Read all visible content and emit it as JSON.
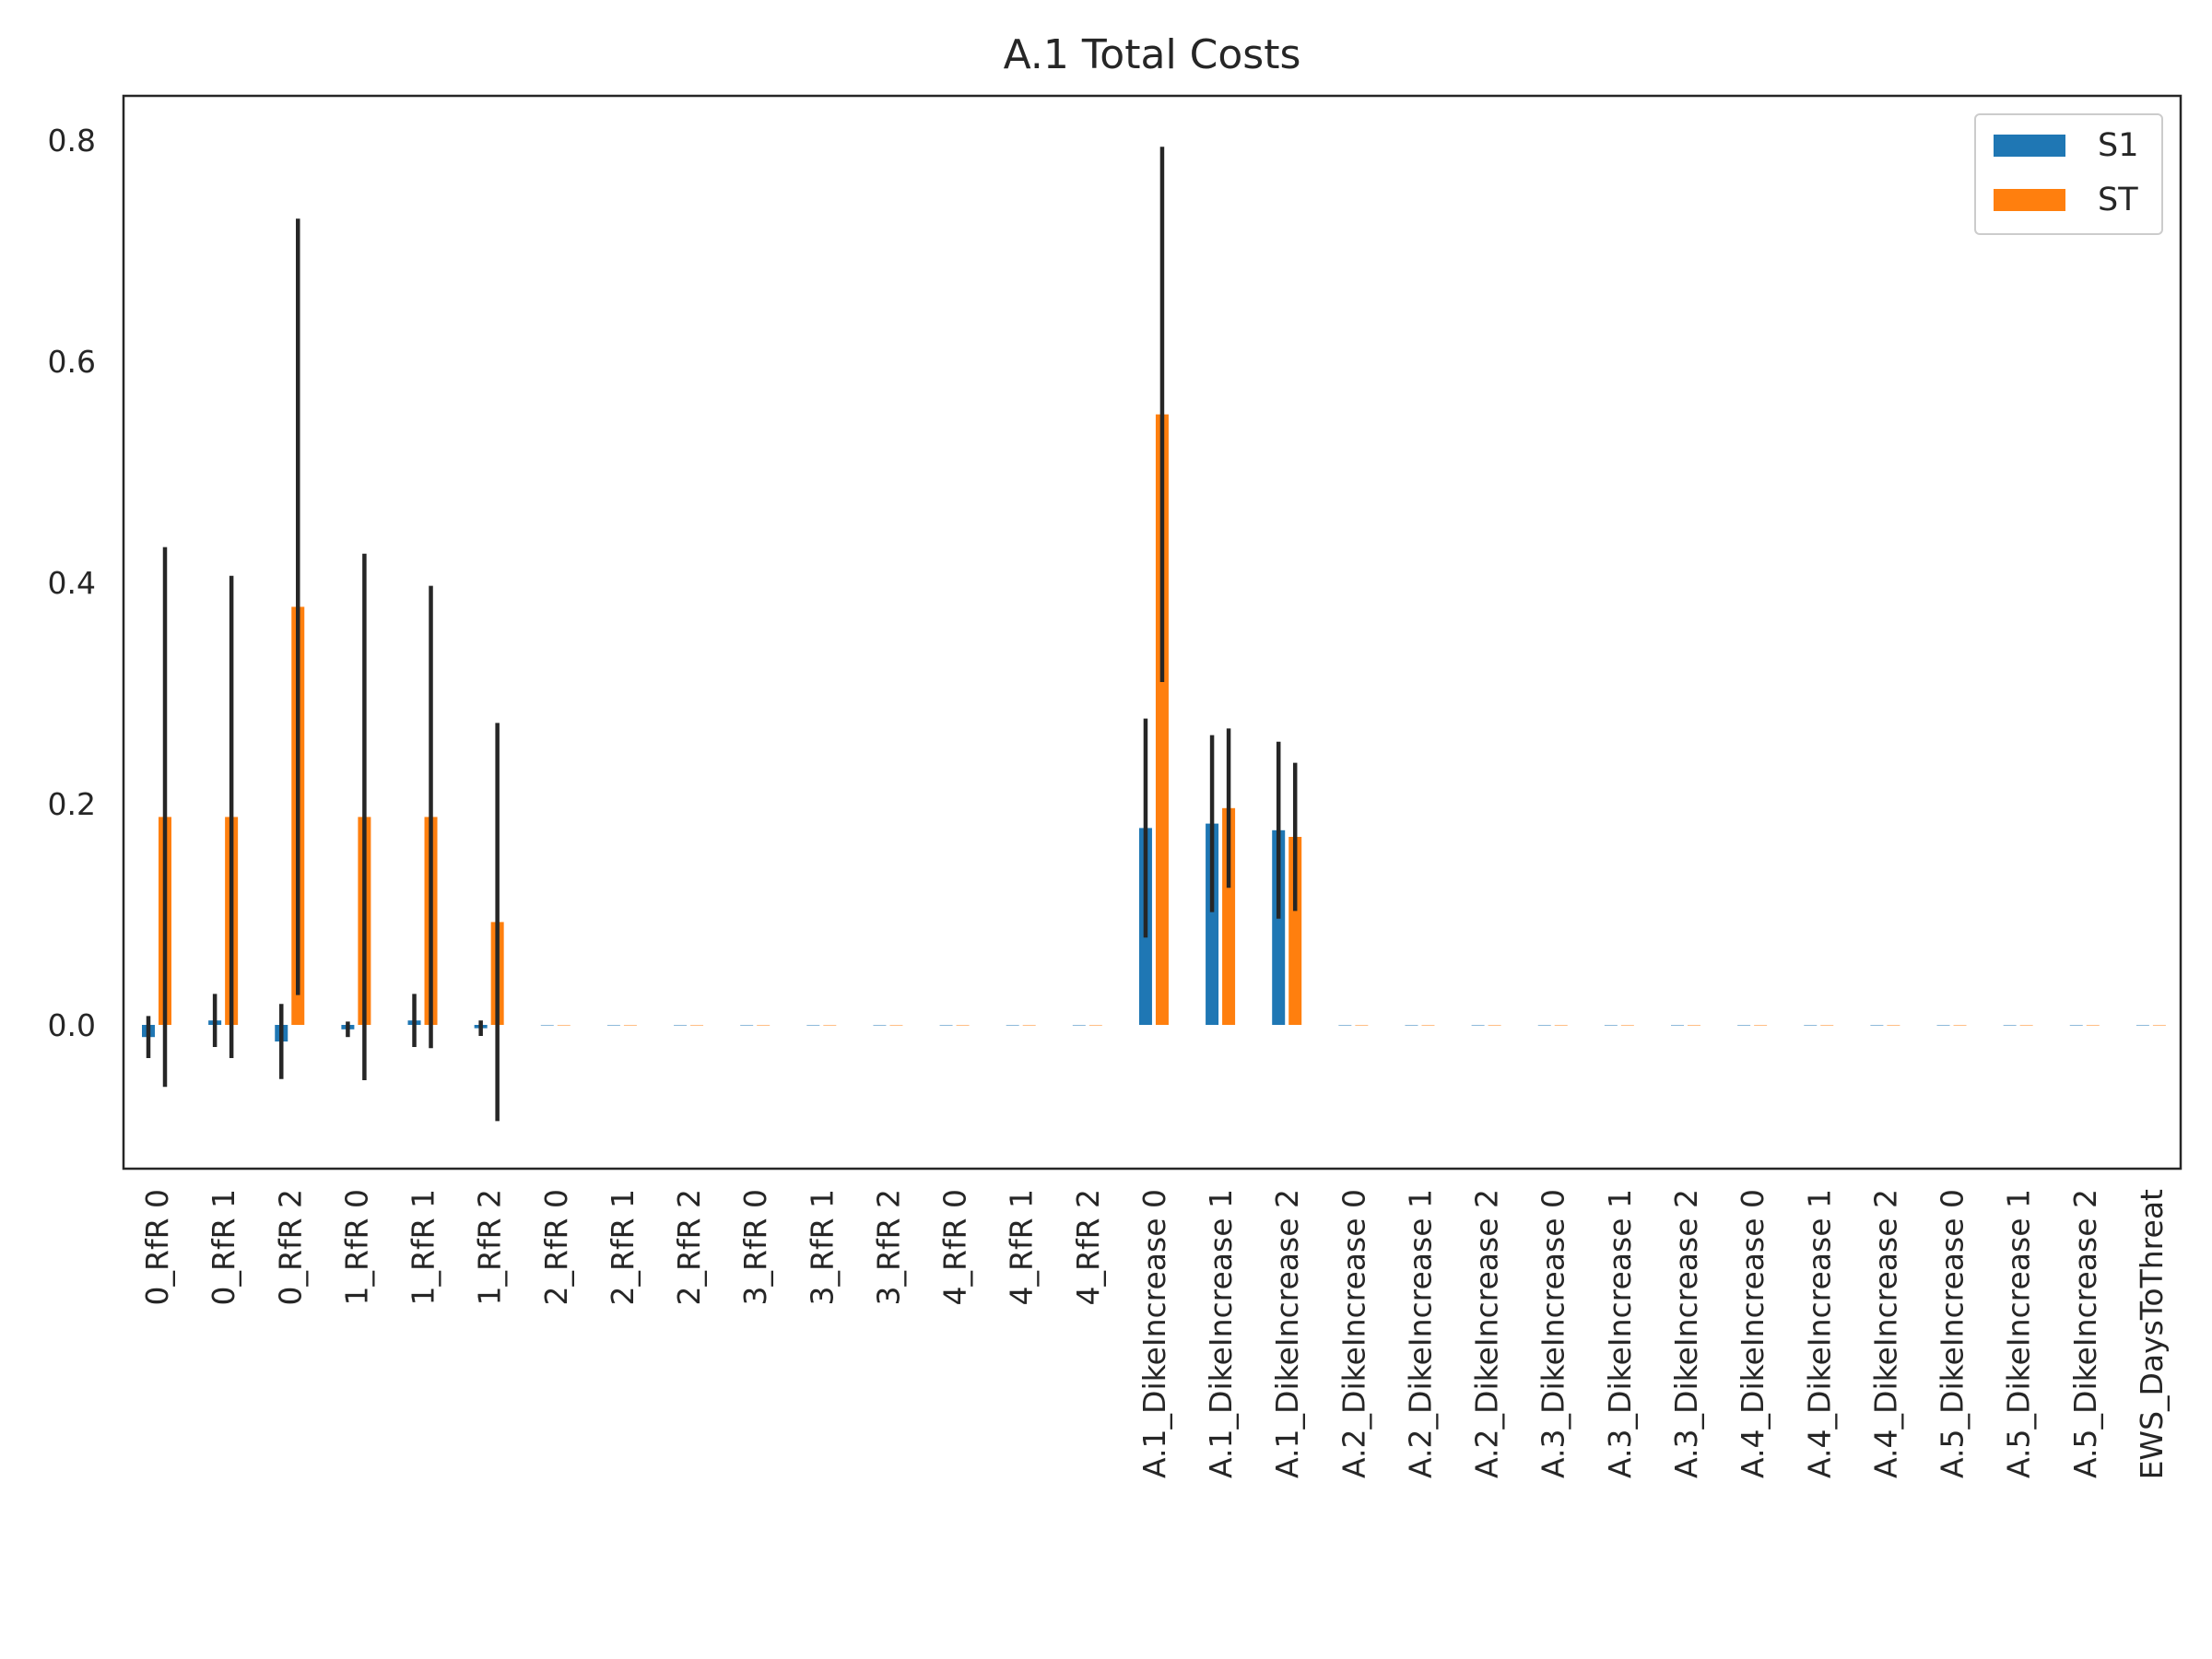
{
  "chart_data": {
    "type": "bar",
    "title": "A.1 Total Costs",
    "xlabel": "",
    "ylabel": "",
    "ylim": [
      -0.13,
      0.84
    ],
    "yticks": [
      0.0,
      0.2,
      0.4,
      0.6,
      0.8
    ],
    "ytick_labels": [
      "0.0",
      "0.2",
      "0.4",
      "0.6",
      "0.8"
    ],
    "grid": false,
    "legend_position": "top-right",
    "categories": [
      "0_RfR 0",
      "0_RfR 1",
      "0_RfR 2",
      "1_RfR 0",
      "1_RfR 1",
      "1_RfR 2",
      "2_RfR 0",
      "2_RfR 1",
      "2_RfR 2",
      "3_RfR 0",
      "3_RfR 1",
      "3_RfR 2",
      "4_RfR 0",
      "4_RfR 1",
      "4_RfR 2",
      "A.1_DikeIncrease 0",
      "A.1_DikeIncrease 1",
      "A.1_DikeIncrease 2",
      "A.2_DikeIncrease 0",
      "A.2_DikeIncrease 1",
      "A.2_DikeIncrease 2",
      "A.3_DikeIncrease 0",
      "A.3_DikeIncrease 1",
      "A.3_DikeIncrease 2",
      "A.4_DikeIncrease 0",
      "A.4_DikeIncrease 1",
      "A.4_DikeIncrease 2",
      "A.5_DikeIncrease 0",
      "A.5_DikeIncrease 1",
      "A.5_DikeIncrease 2",
      "EWS_DaysToThreat"
    ],
    "series": [
      {
        "name": "S1",
        "color": "#1f77b4",
        "values": [
          -0.011,
          0.004,
          -0.015,
          -0.004,
          0.004,
          -0.003,
          0,
          0,
          0,
          0,
          0,
          0,
          0,
          0,
          0,
          0.178,
          0.182,
          0.176,
          0,
          0,
          0,
          0,
          0,
          0,
          0,
          0,
          0,
          0,
          0,
          0,
          0
        ],
        "errors": [
          0.019,
          0.024,
          0.034,
          0.007,
          0.024,
          0.007,
          0,
          0,
          0,
          0,
          0,
          0,
          0,
          0,
          0,
          0.099,
          0.08,
          0.08,
          0,
          0,
          0,
          0,
          0,
          0,
          0,
          0,
          0,
          0,
          0,
          0,
          0
        ]
      },
      {
        "name": "ST",
        "color": "#ff7f0e",
        "values": [
          0.188,
          0.188,
          0.378,
          0.188,
          0.188,
          0.093,
          0,
          0,
          0,
          0,
          0,
          0,
          0,
          0,
          0,
          0.552,
          0.196,
          0.17,
          0,
          0,
          0,
          0,
          0,
          0,
          0,
          0,
          0,
          0,
          0,
          0,
          0
        ],
        "errors": [
          0.244,
          0.218,
          0.351,
          0.238,
          0.209,
          0.18,
          0,
          0,
          0,
          0,
          0,
          0,
          0,
          0,
          0,
          0.242,
          0.072,
          0.067,
          0,
          0,
          0,
          0,
          0,
          0,
          0,
          0,
          0,
          0,
          0,
          0,
          0
        ]
      }
    ]
  }
}
